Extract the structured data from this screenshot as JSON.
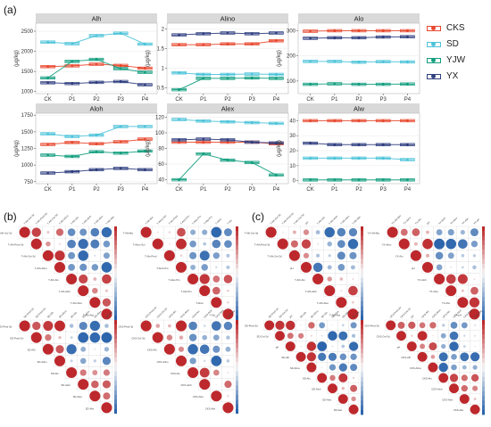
{
  "panel_labels": {
    "a": "(a)",
    "b": "(b)",
    "c": "(c)"
  },
  "legend": {
    "groups": [
      {
        "name": "CKS",
        "color": "#e8482f"
      },
      {
        "name": "SD",
        "color": "#4cc3d9"
      },
      {
        "name": "YJW",
        "color": "#139e7f"
      },
      {
        "name": "YX",
        "color": "#2f3e7f"
      }
    ]
  },
  "chart_data": [
    {
      "type": "box",
      "title": "Alh",
      "ylabel": "(μg/kg)",
      "categories": [
        "CK",
        "P1",
        "P2",
        "P3",
        "P4"
      ],
      "yticks": [
        1000,
        1500,
        2000,
        2500
      ],
      "ylim": [
        950,
        2700
      ],
      "series": [
        {
          "name": "CKS",
          "values": [
            1620,
            1640,
            1680,
            1650,
            1580
          ]
        },
        {
          "name": "SD",
          "values": [
            2230,
            2190,
            2390,
            2450,
            2180
          ]
        },
        {
          "name": "YJW",
          "values": [
            1340,
            1750,
            1800,
            1570,
            1480
          ]
        },
        {
          "name": "YX",
          "values": [
            1220,
            1200,
            1230,
            1250,
            1170
          ]
        }
      ]
    },
    {
      "type": "box",
      "title": "Alino",
      "ylabel": "(μg/kg)",
      "categories": [
        "CK",
        "P1",
        "P2",
        "P3",
        "P4"
      ],
      "yticks": [
        0.5,
        1.0,
        1.5,
        2.0
      ],
      "ylim": [
        0.35,
        2.15
      ],
      "series": [
        {
          "name": "CKS",
          "values": [
            1.6,
            1.6,
            1.62,
            1.62,
            1.7
          ]
        },
        {
          "name": "SD",
          "values": [
            0.88,
            0.84,
            0.84,
            0.85,
            0.84
          ]
        },
        {
          "name": "YJW",
          "values": [
            0.45,
            0.74,
            0.74,
            0.75,
            0.74
          ]
        },
        {
          "name": "YX",
          "values": [
            1.85,
            1.88,
            1.9,
            1.88,
            1.9
          ]
        }
      ]
    },
    {
      "type": "box",
      "title": "Alo",
      "ylabel": "(μg/kg)",
      "categories": [
        "CK",
        "P1",
        "P2",
        "P3",
        "P4"
      ],
      "yticks": [
        100,
        200,
        300
      ],
      "ylim": [
        50,
        330
      ],
      "series": [
        {
          "name": "CKS",
          "values": [
            298,
            300,
            300,
            300,
            300
          ]
        },
        {
          "name": "SD",
          "values": [
            178,
            178,
            175,
            177,
            176
          ]
        },
        {
          "name": "YJW",
          "values": [
            87,
            89,
            87,
            87,
            88
          ]
        },
        {
          "name": "YX",
          "values": [
            270,
            272,
            272,
            275,
            276
          ]
        }
      ]
    },
    {
      "type": "box",
      "title": "Aloh",
      "ylabel": "(μg/kg)",
      "categories": [
        "CK",
        "P1",
        "P2",
        "P3",
        "P4"
      ],
      "yticks": [
        750,
        1000,
        1250,
        1500,
        1750
      ],
      "ylim": [
        720,
        1780
      ],
      "series": [
        {
          "name": "CKS",
          "values": [
            1310,
            1340,
            1320,
            1350,
            1390
          ]
        },
        {
          "name": "SD",
          "values": [
            1470,
            1430,
            1450,
            1580,
            1580
          ]
        },
        {
          "name": "YJW",
          "values": [
            1150,
            1130,
            1200,
            1180,
            1210
          ]
        },
        {
          "name": "YX",
          "values": [
            880,
            900,
            930,
            950,
            930
          ]
        }
      ]
    },
    {
      "type": "box",
      "title": "Alex",
      "ylabel": "(μg/kg)",
      "categories": [
        "CK",
        "P1",
        "P2",
        "P3",
        "P4"
      ],
      "yticks": [
        40,
        60,
        80,
        100,
        120
      ],
      "ylim": [
        35,
        125
      ],
      "series": [
        {
          "name": "CKS",
          "values": [
            88,
            88,
            88,
            88,
            86
          ]
        },
        {
          "name": "SD",
          "values": [
            117,
            115,
            114,
            113,
            112
          ]
        },
        {
          "name": "YJW",
          "values": [
            40,
            73,
            65,
            62,
            46
          ]
        },
        {
          "name": "YX",
          "values": [
            91,
            92,
            91,
            88,
            87
          ]
        }
      ]
    },
    {
      "type": "box",
      "title": "Alw",
      "ylabel": "(μg/kg)",
      "categories": [
        "CK",
        "P1",
        "P2",
        "P3",
        "P4"
      ],
      "yticks": [
        0,
        10,
        20,
        30,
        40
      ],
      "ylim": [
        -2,
        45
      ],
      "series": [
        {
          "name": "CKS",
          "values": [
            40,
            40,
            40,
            40,
            40
          ]
        },
        {
          "name": "SD",
          "values": [
            15,
            15,
            15,
            15,
            14
          ]
        },
        {
          "name": "YJW",
          "values": [
            0.5,
            0.5,
            0.5,
            0.5,
            0.5
          ]
        },
        {
          "name": "YX",
          "values": [
            25,
            24,
            24,
            24,
            24
          ]
        }
      ]
    }
  ],
  "corr_b": [
    {
      "labels": [
        "T-Alh-Soi-3d",
        "T-Alh-Pred-3d",
        "T-Alh-Oxi-3d",
        "T-Alh-Alino",
        "T-Alh-Alo",
        "T-Alh-Aloh",
        "T-Alh-Alex",
        "T-Alh-Alw"
      ]
    },
    {
      "labels": [
        "T-Alh-Bio",
        "T-Alino-Sol",
        "T-Alo-Pred",
        "T-Aloh-Pro",
        "T-Alex-Pro",
        "T-Alw-Pro",
        "T-Alino",
        "T-Alo"
      ]
    },
    {
      "labels": [
        "SD-Pred-3d",
        "SD-Pred-Ox",
        "SD-Alh",
        "SD-Alino",
        "SD-Alo",
        "SD-Aloh",
        "SD-Alex",
        "SD-Alw"
      ]
    },
    {
      "labels": [
        "CKS-Pred-3d",
        "CKS-Oxi-3d",
        "CKS-Alh",
        "CKS-Alino",
        "CKS-Alo",
        "CKS-Aloh",
        "CKS-Alex",
        "CKS-Alw"
      ]
    }
  ],
  "corr_c": [
    {
      "labels": [
        "T-Alh-Soi-3d",
        "T-Alh-Pred-3d",
        "T-Alh-Oxi-3d",
        "pH",
        "T-Alh-Alo",
        "T-Alh-Aloh",
        "T-Alh-Alex",
        "T-Alh-Alw"
      ]
    },
    {
      "labels": [
        "YX-Alh-Bio",
        "YX-Alino",
        "YX-Alo",
        "pH",
        "YX-Aloh",
        "YX-Alex",
        "YX-Alw",
        "YX-pH"
      ]
    },
    {
      "labels": [
        "SD-Pred-3d",
        "SD-Oxi-3d",
        "pH",
        "SD-Alh",
        "SD-Alino",
        "SD-Alo",
        "SD-Aloh",
        "SD-Alex",
        "SD-Alw"
      ]
    },
    {
      "labels": [
        "CKS-Pred-3d",
        "CKS-Oxi-3d",
        "pH",
        "CKS-Alh",
        "CKS-Alino",
        "CKS-Alo",
        "CKS-Aloh",
        "CKS-Alex",
        "CKS-Alw"
      ]
    }
  ]
}
